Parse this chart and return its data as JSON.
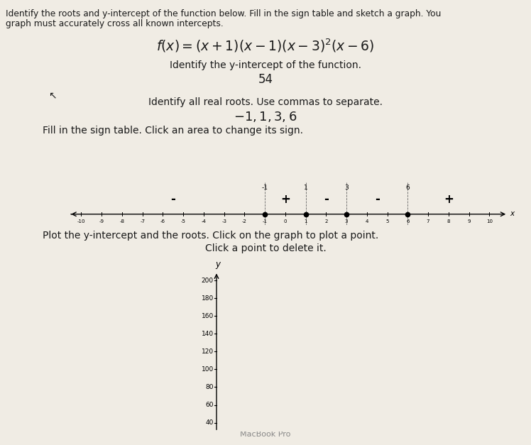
{
  "bg_color": "#f0ece4",
  "text_color": "#1a1a1a",
  "title_line1": "Identify the roots and y-intercept of the function below. Fill in the sign table and sketch a graph. You",
  "title_line2": "graph must accurately cross all known intercepts.",
  "y_intercept_label": "Identify the y-intercept of the function.",
  "y_intercept_value": "54",
  "roots_label": "Identify all real roots. Use commas to separate.",
  "sign_table_label": "Fill in the sign table. Click an area to change its sign.",
  "sign_table_roots": [
    -1,
    1,
    3,
    6
  ],
  "sign_table_signs": [
    "-",
    "+",
    "-",
    "-",
    "+"
  ],
  "sign_table_sign_positions": [
    -5.5,
    0.0,
    2.0,
    4.5,
    8.0
  ],
  "number_line_ticks": [
    -10,
    -9,
    -8,
    -7,
    -6,
    -5,
    -4,
    -3,
    -2,
    -1,
    0,
    1,
    2,
    3,
    4,
    5,
    6,
    7,
    8,
    9,
    10
  ],
  "plot_label_line1": "Plot the y-intercept and the roots. Click on the graph to plot a point.",
  "plot_label_line2": "Click a point to delete it.",
  "graph_yticks": [
    40,
    60,
    80,
    100,
    120,
    140,
    160,
    180,
    200
  ],
  "graph_ylabel": "y",
  "sign_bg_color": "#ecd8cc",
  "footer": "MacBook Pro",
  "footer_color": "#888888"
}
